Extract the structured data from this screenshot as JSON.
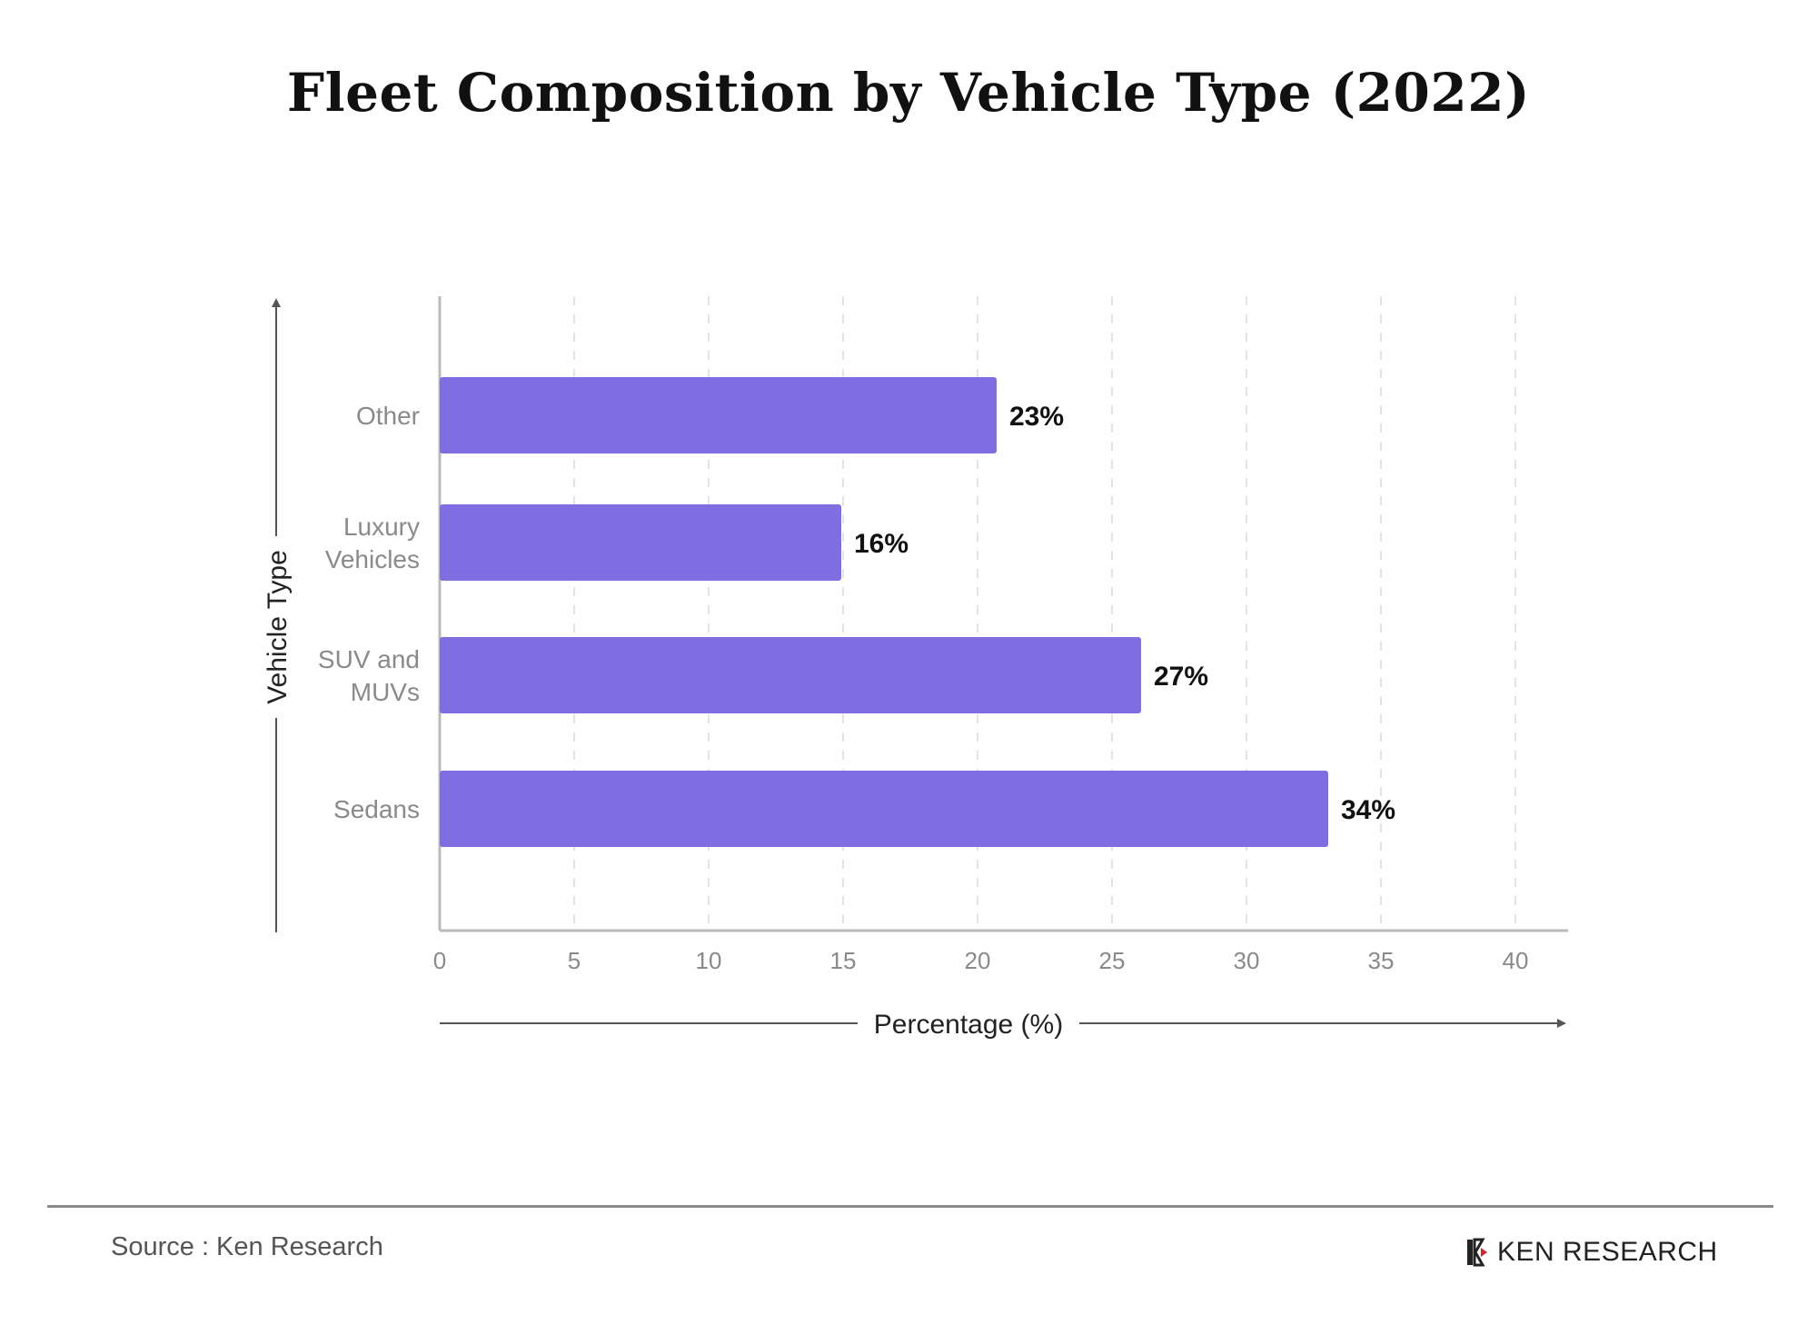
{
  "header": {
    "title": "Fleet Composition by Vehicle Type (2022)"
  },
  "colors": {
    "bar": "#7F6EE2",
    "axis": "#bbbbbb",
    "grid": "#e3e3e3",
    "label": "#8a8a8a",
    "value": "#111111",
    "arrow": "#555555"
  },
  "chart_data": {
    "type": "bar",
    "orientation": "horizontal",
    "title": "Fleet Composition by Vehicle Type (2022)",
    "xlabel": "Percentage (%)",
    "ylabel": "Vehicle Type",
    "xlim": [
      0,
      42
    ],
    "xticks": [
      0,
      5,
      10,
      15,
      20,
      25,
      30,
      35,
      40
    ],
    "grid": "vertical dashed",
    "categories": [
      "Other",
      "Luxury Vehicles",
      "SUV and MUVs",
      "Sedans"
    ],
    "category_lines": [
      [
        "Other"
      ],
      [
        "Luxury",
        "Vehicles"
      ],
      [
        "SUV and",
        "MUVs"
      ],
      [
        "Sedans"
      ]
    ],
    "values": [
      23,
      16,
      27,
      34
    ],
    "value_labels": [
      "23%",
      "16%",
      "27%",
      "34%"
    ]
  },
  "footer": {
    "source": "Source : Ken Research",
    "logo_text": "KEN RESEARCH",
    "logo_icon": "ken-research-logo-icon"
  }
}
